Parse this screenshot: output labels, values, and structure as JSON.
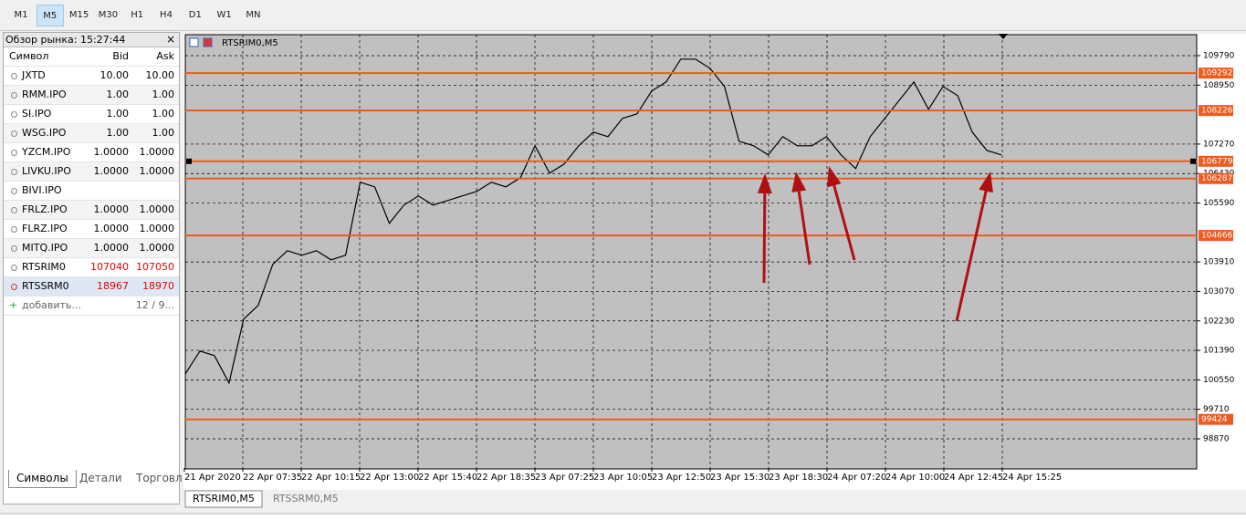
{
  "toolbar": {
    "timeframes": [
      "M1",
      "M5",
      "M15",
      "M30",
      "H1",
      "H4",
      "D1",
      "W1",
      "MN"
    ],
    "active": 1
  },
  "market_watch": {
    "title": "Обзор рынка: 15:27:44",
    "columns": [
      "Символ",
      "Bid",
      "Ask"
    ],
    "rows": [
      [
        "JXTD",
        "10.00",
        "10.00"
      ],
      [
        "RMM.IPO",
        "1.00",
        "1.00"
      ],
      [
        "SI.IPO",
        "1.00",
        "1.00"
      ],
      [
        "WSG.IPO",
        "1.00",
        "1.00"
      ],
      [
        "YZCM.IPO",
        "1.0000",
        "1.0000"
      ],
      [
        "LIVKU.IPO",
        "1.0000",
        "1.0000"
      ],
      [
        "BIVI.IPO",
        "",
        ""
      ],
      [
        "FRLZ.IPO",
        "1.0000",
        "1.0000"
      ],
      [
        "FLRZ.IPO",
        "1.0000",
        "1.0000"
      ],
      [
        "MITQ.IPO",
        "1.0000",
        "1.0000"
      ],
      [
        "RTSRIM0",
        "107040",
        "107050"
      ],
      [
        "RTSSRM0",
        "18967",
        "18970"
      ]
    ],
    "add_label": "добавить...",
    "count": "12 / 9...",
    "tabs": [
      "Символы",
      "Детали",
      "Торговл"
    ]
  },
  "chart_data": {
    "type": "line",
    "title": "RTSRIM0,M5",
    "color": "#000000",
    "level_color": "#f05a1e",
    "grid": true,
    "ylim": [
      98038,
      110414
    ],
    "yticks": [
      109790,
      108950,
      107270,
      106430,
      105590,
      103910,
      103070,
      102230,
      101390,
      100550,
      99710,
      98870
    ],
    "levels": [
      109292,
      108226,
      106779,
      106287,
      104666,
      99424
    ],
    "x_labels": [
      "21 Apr 2020",
      "22 Apr 07:35",
      "22 Apr 10:15",
      "22 Apr 13:00",
      "22 Apr 15:40",
      "22 Apr 18:35",
      "23 Apr 07:25",
      "23 Apr 10:05",
      "23 Apr 12:50",
      "23 Apr 15:30",
      "23 Apr 18:30",
      "24 Apr 07:20",
      "24 Apr 10:00",
      "24 Apr 12:45",
      "24 Apr 15:25"
    ],
    "prices": [
      100720,
      101370,
      101240,
      100460,
      102280,
      102670,
      103840,
      104230,
      104100,
      104230,
      103970,
      104100,
      106180,
      106050,
      105010,
      105530,
      105790,
      105530,
      105660,
      105790,
      105920,
      106180,
      106050,
      106310,
      107220,
      106440,
      106700,
      107220,
      107610,
      107480,
      108000,
      108130,
      108780,
      109040,
      109690,
      109690,
      109430,
      108910,
      107350,
      107220,
      106960,
      107480,
      107220,
      107220,
      107480,
      106960,
      106570,
      107480,
      108000,
      108520,
      109040,
      108260,
      108910,
      108650,
      107610,
      107090,
      106960
    ]
  },
  "chart_tabs": [
    "RTSRIM0,M5",
    "RTSSRM0,M5"
  ]
}
